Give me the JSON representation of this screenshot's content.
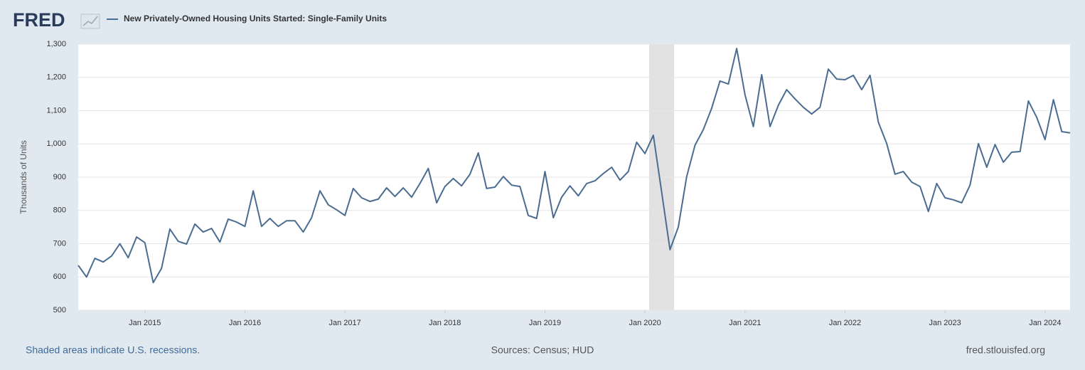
{
  "chart_data": {
    "type": "line",
    "logo": "FRED",
    "title": "New Privately-Owned Housing Units Started: Single-Family Units",
    "ylabel": "Thousands of Units",
    "x": [
      "2014-05",
      "2014-06",
      "2014-07",
      "2014-08",
      "2014-09",
      "2014-10",
      "2014-11",
      "2014-12",
      "2015-01",
      "2015-02",
      "2015-03",
      "2015-04",
      "2015-05",
      "2015-06",
      "2015-07",
      "2015-08",
      "2015-09",
      "2015-10",
      "2015-11",
      "2015-12",
      "2016-01",
      "2016-02",
      "2016-03",
      "2016-04",
      "2016-05",
      "2016-06",
      "2016-07",
      "2016-08",
      "2016-09",
      "2016-10",
      "2016-11",
      "2016-12",
      "2017-01",
      "2017-02",
      "2017-03",
      "2017-04",
      "2017-05",
      "2017-06",
      "2017-07",
      "2017-08",
      "2017-09",
      "2017-10",
      "2017-11",
      "2017-12",
      "2018-01",
      "2018-02",
      "2018-03",
      "2018-04",
      "2018-05",
      "2018-06",
      "2018-07",
      "2018-08",
      "2018-09",
      "2018-10",
      "2018-11",
      "2018-12",
      "2019-01",
      "2019-02",
      "2019-03",
      "2019-04",
      "2019-05",
      "2019-06",
      "2019-07",
      "2019-08",
      "2019-09",
      "2019-10",
      "2019-11",
      "2019-12",
      "2020-01",
      "2020-02",
      "2020-03",
      "2020-04",
      "2020-05",
      "2020-06",
      "2020-07",
      "2020-08",
      "2020-09",
      "2020-10",
      "2020-11",
      "2020-12",
      "2021-01",
      "2021-02",
      "2021-03",
      "2021-04",
      "2021-05",
      "2021-06",
      "2021-07",
      "2021-08",
      "2021-09",
      "2021-10",
      "2021-11",
      "2021-12",
      "2022-01",
      "2022-02",
      "2022-03",
      "2022-04",
      "2022-05",
      "2022-06",
      "2022-07",
      "2022-08",
      "2022-09",
      "2022-10",
      "2022-11",
      "2022-12",
      "2023-01",
      "2023-02",
      "2023-03",
      "2023-04",
      "2023-05",
      "2023-06",
      "2023-07",
      "2023-08",
      "2023-09",
      "2023-10",
      "2023-11",
      "2023-12",
      "2024-01",
      "2024-02",
      "2024-03",
      "2024-04"
    ],
    "series": [
      {
        "name": "New Privately-Owned Housing Units Started: Single-Family Units",
        "color": "#4b6c91",
        "values": [
          635,
          600,
          656,
          645,
          663,
          700,
          658,
          720,
          703,
          583,
          626,
          744,
          707,
          699,
          759,
          735,
          746,
          705,
          774,
          765,
          752,
          859,
          752,
          776,
          752,
          769,
          769,
          735,
          778,
          859,
          817,
          802,
          785,
          866,
          838,
          827,
          834,
          868,
          842,
          868,
          840,
          881,
          926,
          823,
          872,
          896,
          874,
          909,
          973,
          866,
          870,
          902,
          876,
          872,
          785,
          776,
          917,
          778,
          840,
          874,
          844,
          881,
          889,
          911,
          930,
          891,
          917,
          1005,
          971,
          1026,
          855,
          682,
          750,
          902,
          996,
          1043,
          1107,
          1189,
          1180,
          1287,
          1148,
          1052,
          1208,
          1052,
          1116,
          1163,
          1135,
          1110,
          1090,
          1110,
          1225,
          1195,
          1193,
          1206,
          1163,
          1206,
          1065,
          1001,
          909,
          917,
          885,
          872,
          797,
          881,
          838,
          832,
          823,
          876,
          1001,
          930,
          998,
          945,
          975,
          977,
          1129,
          1080,
          1013,
          1133,
          1037,
          1033
        ]
      }
    ],
    "xlim": [
      "2014-05",
      "2024-04"
    ],
    "xticks": [
      {
        "value": "2015-01",
        "label": "Jan 2015"
      },
      {
        "value": "2016-01",
        "label": "Jan 2016"
      },
      {
        "value": "2017-01",
        "label": "Jan 2017"
      },
      {
        "value": "2018-01",
        "label": "Jan 2018"
      },
      {
        "value": "2019-01",
        "label": "Jan 2019"
      },
      {
        "value": "2020-01",
        "label": "Jan 2020"
      },
      {
        "value": "2021-01",
        "label": "Jan 2021"
      },
      {
        "value": "2022-01",
        "label": "Jan 2022"
      },
      {
        "value": "2023-01",
        "label": "Jan 2023"
      },
      {
        "value": "2024-01",
        "label": "Jan 2024"
      }
    ],
    "ylim": [
      500,
      1300
    ],
    "yticks": [
      500,
      600,
      700,
      800,
      900,
      {
        "value": 1000,
        "label": "1,000"
      },
      {
        "value": 1100,
        "label": "1,100"
      },
      {
        "value": 1200,
        "label": "1,200"
      },
      {
        "value": 1300,
        "label": "1,300"
      }
    ],
    "grid": true,
    "recessions": [
      [
        "2020-02",
        "2020-04"
      ]
    ],
    "recession_note": "Shaded areas indicate U.S. recessions.",
    "source": "Sources: Census; HUD",
    "site": "fred.stlouisfed.org"
  }
}
